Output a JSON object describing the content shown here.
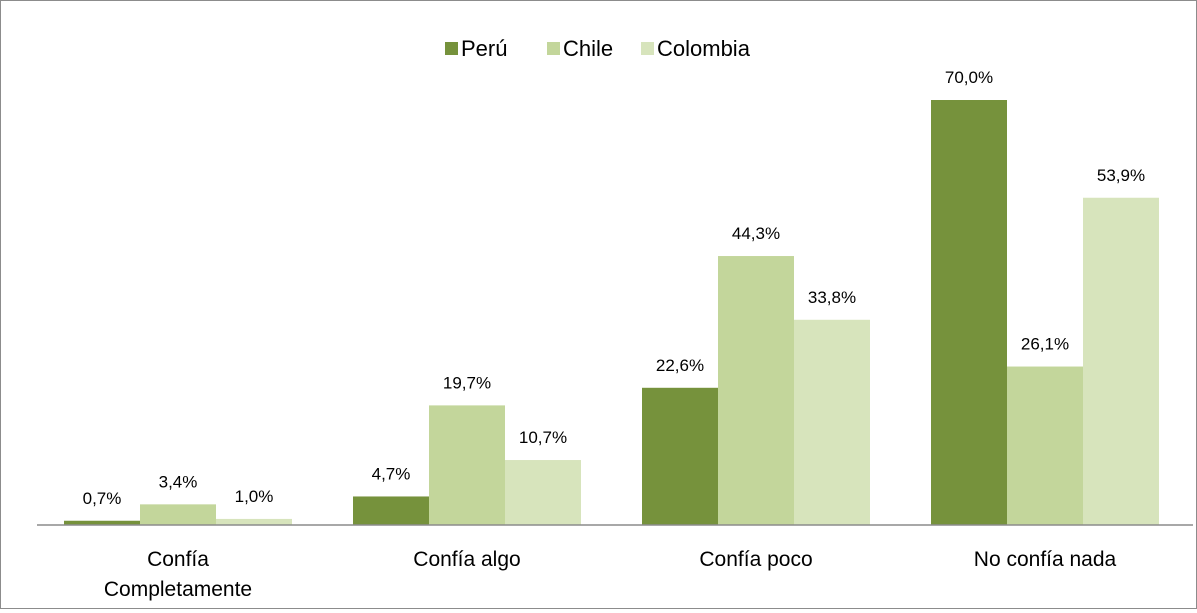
{
  "chart_data": {
    "type": "bar",
    "categories": [
      [
        "Confía",
        "Completamente"
      ],
      [
        "Confía algo"
      ],
      [
        "Confía poco"
      ],
      [
        "No confía nada"
      ]
    ],
    "series": [
      {
        "name": "Perú",
        "color": "#76923c",
        "values": [
          0.7,
          4.7,
          22.6,
          70.0
        ],
        "labels": [
          "0,7%",
          "4,7%",
          "22,6%",
          "70,0%"
        ]
      },
      {
        "name": "Chile",
        "color": "#c3d69b",
        "values": [
          3.4,
          19.7,
          44.3,
          26.1
        ],
        "labels": [
          "3,4%",
          "19,7%",
          "44,3%",
          "26,1%"
        ]
      },
      {
        "name": "Colombia",
        "color": "#d7e4bc",
        "values": [
          1.0,
          10.7,
          33.8,
          53.9
        ],
        "labels": [
          "1,0%",
          "10,7%",
          "33,8%",
          "53,9%"
        ]
      }
    ],
    "ylim": [
      0,
      75
    ],
    "grid": false,
    "legend_position": "top-center",
    "title": "",
    "xlabel": "",
    "ylabel": ""
  }
}
